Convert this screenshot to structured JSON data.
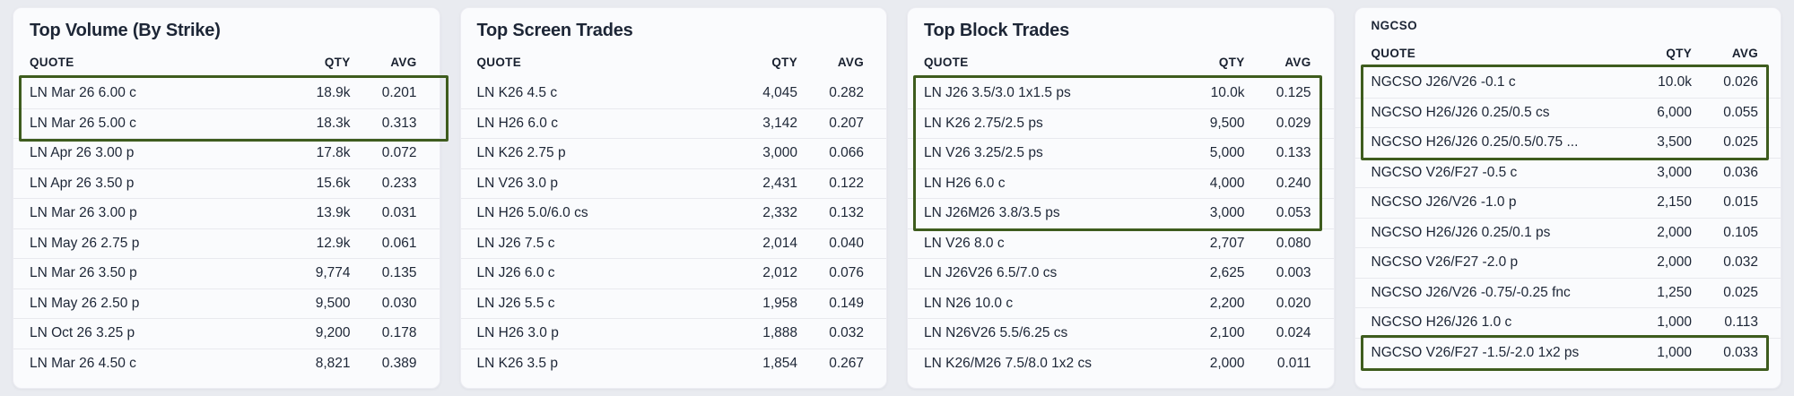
{
  "colors": {
    "highlight": "#3e5c1e",
    "text": "#1d2636",
    "bg": "#e9ebf0",
    "card": "#fafbfd"
  },
  "panels": [
    {
      "title": "Top Volume (By Strike)",
      "columns": {
        "quote": "QUOTE",
        "qty": "QTY",
        "avg": "AVG"
      },
      "rows": [
        {
          "quote": "LN Mar 26 6.00 c",
          "qty": "18.9k",
          "avg": "0.201"
        },
        {
          "quote": "LN Mar 26 5.00 c",
          "qty": "18.3k",
          "avg": "0.313"
        },
        {
          "quote": "LN Apr 26 3.00 p",
          "qty": "17.8k",
          "avg": "0.072"
        },
        {
          "quote": "LN Apr 26 3.50 p",
          "qty": "15.6k",
          "avg": "0.233"
        },
        {
          "quote": "LN Mar 26 3.00 p",
          "qty": "13.9k",
          "avg": "0.031"
        },
        {
          "quote": "LN May 26 2.75 p",
          "qty": "12.9k",
          "avg": "0.061"
        },
        {
          "quote": "LN Mar 26 3.50 p",
          "qty": "9,774",
          "avg": "0.135"
        },
        {
          "quote": "LN May 26 2.50 p",
          "qty": "9,500",
          "avg": "0.030"
        },
        {
          "quote": "LN Oct 26 3.25 p",
          "qty": "9,200",
          "avg": "0.178"
        },
        {
          "quote": "LN Mar 26 4.50 c",
          "qty": "8,821",
          "avg": "0.389"
        }
      ],
      "highlights": [
        {
          "from": 0,
          "to": 1,
          "extend_right": true
        }
      ]
    },
    {
      "title": "Top Screen Trades",
      "columns": {
        "quote": "QUOTE",
        "qty": "QTY",
        "avg": "AVG"
      },
      "rows": [
        {
          "quote": "LN K26 4.5 c",
          "qty": "4,045",
          "avg": "0.282"
        },
        {
          "quote": "LN H26 6.0 c",
          "qty": "3,142",
          "avg": "0.207"
        },
        {
          "quote": "LN K26 2.75 p",
          "qty": "3,000",
          "avg": "0.066"
        },
        {
          "quote": "LN V26 3.0 p",
          "qty": "2,431",
          "avg": "0.122"
        },
        {
          "quote": "LN H26 5.0/6.0 cs",
          "qty": "2,332",
          "avg": "0.132"
        },
        {
          "quote": "LN J26 7.5 c",
          "qty": "2,014",
          "avg": "0.040"
        },
        {
          "quote": "LN J26 6.0 c",
          "qty": "2,012",
          "avg": "0.076"
        },
        {
          "quote": "LN J26 5.5 c",
          "qty": "1,958",
          "avg": "0.149"
        },
        {
          "quote": "LN H26 3.0 p",
          "qty": "1,888",
          "avg": "0.032"
        },
        {
          "quote": "LN K26 3.5 p",
          "qty": "1,854",
          "avg": "0.267"
        }
      ],
      "highlights": []
    },
    {
      "title": "Top Block Trades",
      "columns": {
        "quote": "QUOTE",
        "qty": "QTY",
        "avg": "AVG"
      },
      "rows": [
        {
          "quote": "LN J26 3.5/3.0 1x1.5 ps",
          "qty": "10.0k",
          "avg": "0.125"
        },
        {
          "quote": "LN K26 2.75/2.5 ps",
          "qty": "9,500",
          "avg": "0.029"
        },
        {
          "quote": "LN V26 3.25/2.5 ps",
          "qty": "5,000",
          "avg": "0.133"
        },
        {
          "quote": "LN H26 6.0 c",
          "qty": "4,000",
          "avg": "0.240"
        },
        {
          "quote": "LN J26M26 3.8/3.5 ps",
          "qty": "3,000",
          "avg": "0.053"
        },
        {
          "quote": "LN V26 8.0 c",
          "qty": "2,707",
          "avg": "0.080"
        },
        {
          "quote": "LN J26V26 6.5/7.0 cs",
          "qty": "2,625",
          "avg": "0.003"
        },
        {
          "quote": "LN N26 10.0 c",
          "qty": "2,200",
          "avg": "0.020"
        },
        {
          "quote": "LN N26V26 5.5/6.25 cs",
          "qty": "2,100",
          "avg": "0.024"
        },
        {
          "quote": "LN K26/M26 7.5/8.0 1x2 cs",
          "qty": "2,000",
          "avg": "0.011"
        }
      ],
      "highlights": [
        {
          "from": 0,
          "to": 4
        }
      ]
    },
    {
      "title": "NGCSO",
      "columns": {
        "quote": "QUOTE",
        "qty": "QTY",
        "avg": "AVG"
      },
      "rows": [
        {
          "quote": "NGCSO J26/V26 -0.1 c",
          "qty": "10.0k",
          "avg": "0.026"
        },
        {
          "quote": "NGCSO H26/J26 0.25/0.5 cs",
          "qty": "6,000",
          "avg": "0.055"
        },
        {
          "quote": "NGCSO H26/J26 0.25/0.5/0.75 ...",
          "qty": "3,500",
          "avg": "0.025"
        },
        {
          "quote": "NGCSO V26/F27 -0.5 c",
          "qty": "3,000",
          "avg": "0.036"
        },
        {
          "quote": "NGCSO J26/V26 -1.0 p",
          "qty": "2,150",
          "avg": "0.015"
        },
        {
          "quote": "NGCSO H26/J26 0.25/0.1 ps",
          "qty": "2,000",
          "avg": "0.105"
        },
        {
          "quote": "NGCSO V26/F27 -2.0 p",
          "qty": "2,000",
          "avg": "0.032"
        },
        {
          "quote": "NGCSO J26/V26 -0.75/-0.25 fnc",
          "qty": "1,250",
          "avg": "0.025"
        },
        {
          "quote": "NGCSO H26/J26 1.0 c",
          "qty": "1,000",
          "avg": "0.113"
        },
        {
          "quote": "NGCSO V26/F27 -1.5/-2.0 1x2 ps",
          "qty": "1,000",
          "avg": "0.033"
        }
      ],
      "highlights": [
        {
          "from": 0,
          "to": 2
        },
        {
          "from": 9,
          "to": 9
        }
      ]
    }
  ]
}
